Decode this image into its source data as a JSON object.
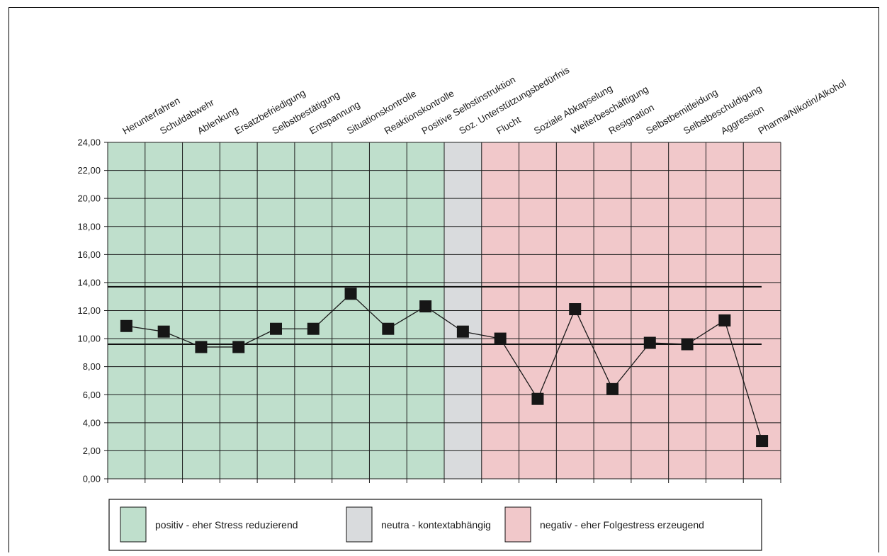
{
  "chart_data": {
    "type": "line",
    "categories": [
      "Herunterfahren",
      "Schuldabwehr",
      "Ablenkung",
      "Ersatzbefriedigung",
      "Selbstbestätigung",
      "Entspannung",
      "Situationskontrolle",
      "Reaktionskontrolle",
      "Positive Selbstinstruktion",
      "Soz. Unterstützungsbedürfnis",
      "Flucht",
      "Soziale Abkapselung",
      "Weiterbeschäftigung",
      "Resignation",
      "Selbstbemitleidung",
      "Selbstbeschuldigung",
      "Aggression",
      "Pharma/Nikotin/Alkohol"
    ],
    "values": [
      10.9,
      10.5,
      9.4,
      9.4,
      10.7,
      10.7,
      13.2,
      10.7,
      12.3,
      10.5,
      10.0,
      5.7,
      12.1,
      6.4,
      9.7,
      9.6,
      11.3,
      2.7
    ],
    "reference_lines": [
      13.7,
      9.6
    ],
    "ylim": [
      0,
      24
    ],
    "yticks": [
      "0,00",
      "2,00",
      "4,00",
      "6,00",
      "8,00",
      "10,00",
      "12,00",
      "14,00",
      "16,00",
      "18,00",
      "20,00",
      "22,00",
      "24,00"
    ],
    "grid": true,
    "bands": [
      {
        "from": 0,
        "to": 9,
        "color": "#bfdfcc"
      },
      {
        "from": 9,
        "to": 10,
        "color": "#d9dbdd"
      },
      {
        "from": 10,
        "to": 18,
        "color": "#f1c8ca"
      }
    ],
    "legend": {
      "placement": "bottom",
      "items": [
        {
          "label": "positiv - eher Stress reduzierend",
          "color": "#bfdfcc"
        },
        {
          "label": "neutra - kontextabhängig",
          "color": "#d9dbdd"
        },
        {
          "label": "negativ - eher Folgestress erzeugend",
          "color": "#f1c8ca"
        }
      ]
    },
    "title": "",
    "xlabel": "",
    "ylabel": ""
  }
}
